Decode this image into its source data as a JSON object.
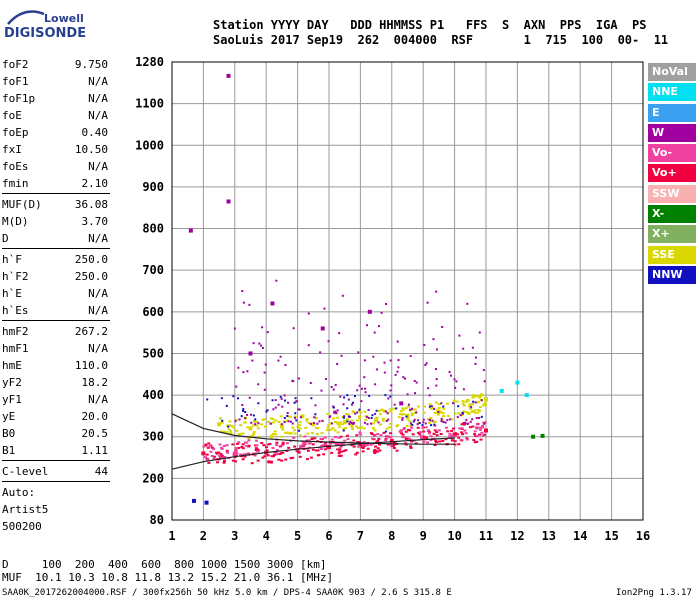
{
  "logo": {
    "line1": "Lowell",
    "line2": "DIGISONDE"
  },
  "header": {
    "line1": "Station YYYY DAY   DDD HHMMSS P1   FFS  S  AXN  PPS  IGA  PS",
    "line2": "SaoLuis 2017 Sep19  262  004000  RSF       1  715  100  00-  11"
  },
  "params": [
    {
      "k": "foF2",
      "v": "9.750"
    },
    {
      "k": "foF1",
      "v": "N/A"
    },
    {
      "k": "foF1p",
      "v": "N/A"
    },
    {
      "k": "foE",
      "v": "N/A"
    },
    {
      "k": "foEp",
      "v": "0.40"
    },
    {
      "k": "fxI",
      "v": "10.50"
    },
    {
      "k": "foEs",
      "v": "N/A"
    },
    {
      "k": "fmin",
      "v": "2.10"
    },
    {
      "k": "MUF(D)",
      "v": "36.08"
    },
    {
      "k": "M(D)",
      "v": "3.70"
    },
    {
      "k": "D",
      "v": "N/A"
    },
    {
      "k": "h`F",
      "v": "250.0"
    },
    {
      "k": "h`F2",
      "v": "250.0"
    },
    {
      "k": "h`E",
      "v": "N/A"
    },
    {
      "k": "h`Es",
      "v": "N/A"
    },
    {
      "k": "hmF2",
      "v": "267.2"
    },
    {
      "k": "hmF1",
      "v": "N/A"
    },
    {
      "k": "hmE",
      "v": "110.0"
    },
    {
      "k": "yF2",
      "v": "18.2"
    },
    {
      "k": "yF1",
      "v": "N/A"
    },
    {
      "k": "yE",
      "v": "20.0"
    },
    {
      "k": "B0",
      "v": "20.5"
    },
    {
      "k": "B1",
      "v": "1.11"
    },
    {
      "k": "C-level",
      "v": "44"
    },
    {
      "k": "Auto:",
      "v": ""
    },
    {
      "k": "Artist5",
      "v": ""
    },
    {
      "k": "500200",
      "v": ""
    }
  ],
  "legend": [
    {
      "label": "NoVal",
      "color": "#a0a0a0"
    },
    {
      "label": "NNE",
      "color": "#00e0f0"
    },
    {
      "label": "E",
      "color": "#3aa0f0"
    },
    {
      "label": "W",
      "color": "#a000a0"
    },
    {
      "label": "Vo-",
      "color": "#f040a0"
    },
    {
      "label": "Vo+",
      "color": "#f00040"
    },
    {
      "label": "SSW",
      "color": "#f8b0b0"
    },
    {
      "label": "X-",
      "color": "#008000"
    },
    {
      "label": "X+",
      "color": "#80b060"
    },
    {
      "label": "SSE",
      "color": "#d8d800"
    },
    {
      "label": "NNW",
      "color": "#1010c0"
    }
  ],
  "footer": {
    "line1": "D     100  200  400  600  800 1000 1500 3000 [km]",
    "line2": "MUF  10.1 10.3 10.8 11.8 13.2 15.2 21.0 36.1 [MHz]",
    "source": "SAA0K_2017262004000.RSF / 300fx256h 50 kHz 5.0 km / DPS-4 SAA0K 903 / 2.6 S 315.8 E",
    "version": "Ion2Png 1.3.17"
  },
  "chart_data": {
    "type": "scatter",
    "xlabel": "",
    "ylabel": "",
    "xlim": [
      1,
      16
    ],
    "x_ticks": [
      1,
      2,
      3,
      4,
      5,
      6,
      7,
      8,
      9,
      10,
      11,
      12,
      13,
      14,
      15,
      16
    ],
    "y_ticks": [
      80,
      200,
      300,
      400,
      500,
      600,
      700,
      800,
      900,
      1000,
      1100,
      1280
    ],
    "grid": true,
    "legend_placement": "right",
    "series": [
      {
        "name": "Vo+",
        "points": [
          [
            2.0,
            260
          ],
          [
            3.0,
            258
          ],
          [
            4.0,
            262
          ],
          [
            5.0,
            268
          ],
          [
            6.0,
            275
          ],
          [
            7.0,
            282
          ],
          [
            8.0,
            290
          ],
          [
            9.0,
            298
          ],
          [
            10.0,
            305
          ],
          [
            11.0,
            315
          ]
        ]
      },
      {
        "name": "SSE",
        "points": [
          [
            2.5,
            330
          ],
          [
            3.5,
            320
          ],
          [
            4.5,
            325
          ],
          [
            5.5,
            330
          ],
          [
            6.5,
            335
          ],
          [
            7.5,
            340
          ],
          [
            8.5,
            350
          ],
          [
            9.5,
            360
          ],
          [
            10.5,
            375
          ],
          [
            11.0,
            390
          ]
        ]
      },
      {
        "name": "W",
        "points": [
          [
            3.5,
            500
          ],
          [
            4.2,
            620
          ],
          [
            5.8,
            560
          ],
          [
            7.3,
            600
          ],
          [
            8.3,
            380
          ],
          [
            2.8,
            1220
          ],
          [
            1.6,
            795
          ],
          [
            2.8,
            865
          ]
        ]
      },
      {
        "name": "NNE",
        "points": [
          [
            11.5,
            410
          ],
          [
            12.0,
            430
          ],
          [
            12.3,
            400
          ]
        ]
      },
      {
        "name": "X-",
        "points": [
          [
            12.5,
            300
          ],
          [
            12.8,
            302
          ]
        ]
      },
      {
        "name": "NNW",
        "points": [
          [
            1.7,
            135
          ],
          [
            2.1,
            130
          ]
        ]
      }
    ],
    "curves": [
      {
        "name": "",
        "points": [
          [
            1,
            222
          ],
          [
            2,
            240
          ],
          [
            3,
            252
          ],
          [
            4,
            262
          ],
          [
            5,
            270
          ],
          [
            6,
            277
          ],
          [
            7,
            283
          ],
          [
            8,
            288
          ],
          [
            9,
            293
          ],
          [
            10,
            297
          ]
        ]
      },
      {
        "name": "",
        "points": [
          [
            1,
            355
          ],
          [
            2,
            320
          ],
          [
            3,
            303
          ],
          [
            4,
            295
          ],
          [
            5,
            290
          ],
          [
            6,
            287
          ],
          [
            7,
            285
          ],
          [
            8,
            283
          ],
          [
            9,
            282
          ],
          [
            10,
            282
          ]
        ]
      }
    ]
  }
}
